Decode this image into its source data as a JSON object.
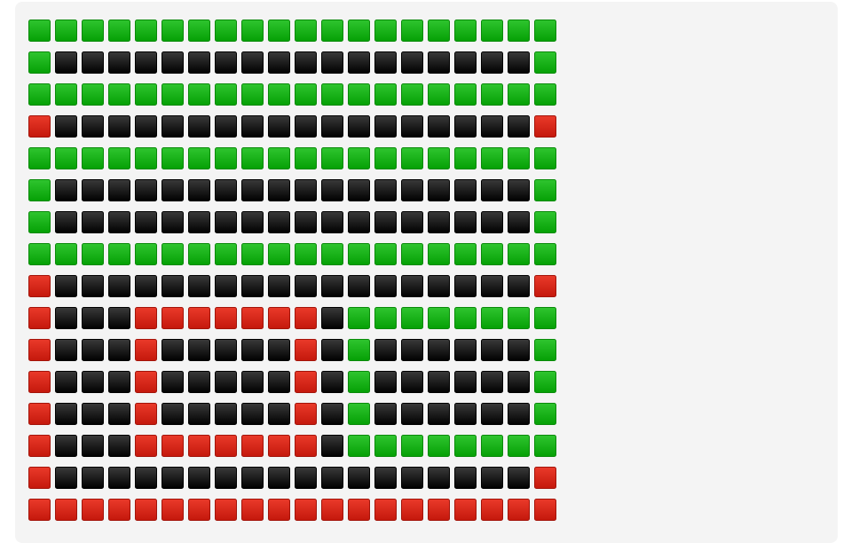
{
  "grid": {
    "rows": [
      [
        "green",
        "green",
        "green",
        "green",
        "green",
        "green",
        "green",
        "green",
        "green",
        "green",
        "green",
        "green",
        "green",
        "green",
        "green",
        "green",
        "green",
        "green",
        "green",
        "green"
      ],
      [
        "green",
        "black",
        "black",
        "black",
        "black",
        "black",
        "black",
        "black",
        "black",
        "black",
        "black",
        "black",
        "black",
        "black",
        "black",
        "black",
        "black",
        "black",
        "black",
        "green"
      ],
      [
        "green",
        "green",
        "green",
        "green",
        "green",
        "green",
        "green",
        "green",
        "green",
        "green",
        "green",
        "green",
        "green",
        "green",
        "green",
        "green",
        "green",
        "green",
        "green",
        "green"
      ],
      [
        "red",
        "black",
        "black",
        "black",
        "black",
        "black",
        "black",
        "black",
        "black",
        "black",
        "black",
        "black",
        "black",
        "black",
        "black",
        "black",
        "black",
        "black",
        "black",
        "red"
      ],
      [
        "green",
        "green",
        "green",
        "green",
        "green",
        "green",
        "green",
        "green",
        "green",
        "green",
        "green",
        "green",
        "green",
        "green",
        "green",
        "green",
        "green",
        "green",
        "green",
        "green"
      ],
      [
        "green",
        "black",
        "black",
        "black",
        "black",
        "black",
        "black",
        "black",
        "black",
        "black",
        "black",
        "black",
        "black",
        "black",
        "black",
        "black",
        "black",
        "black",
        "black",
        "green"
      ],
      [
        "green",
        "black",
        "black",
        "black",
        "black",
        "black",
        "black",
        "black",
        "black",
        "black",
        "black",
        "black",
        "black",
        "black",
        "black",
        "black",
        "black",
        "black",
        "black",
        "green"
      ],
      [
        "green",
        "green",
        "green",
        "green",
        "green",
        "green",
        "green",
        "green",
        "green",
        "green",
        "green",
        "green",
        "green",
        "green",
        "green",
        "green",
        "green",
        "green",
        "green",
        "green"
      ],
      [
        "red",
        "black",
        "black",
        "black",
        "black",
        "black",
        "black",
        "black",
        "black",
        "black",
        "black",
        "black",
        "black",
        "black",
        "black",
        "black",
        "black",
        "black",
        "black",
        "red"
      ],
      [
        "red",
        "black",
        "black",
        "black",
        "red",
        "red",
        "red",
        "red",
        "red",
        "red",
        "red",
        "black",
        "green",
        "green",
        "green",
        "green",
        "green",
        "green",
        "green",
        "green"
      ],
      [
        "red",
        "black",
        "black",
        "black",
        "red",
        "black",
        "black",
        "black",
        "black",
        "black",
        "red",
        "black",
        "green",
        "black",
        "black",
        "black",
        "black",
        "black",
        "black",
        "green"
      ],
      [
        "red",
        "black",
        "black",
        "black",
        "red",
        "black",
        "black",
        "black",
        "black",
        "black",
        "red",
        "black",
        "green",
        "black",
        "black",
        "black",
        "black",
        "black",
        "black",
        "green"
      ],
      [
        "red",
        "black",
        "black",
        "black",
        "red",
        "black",
        "black",
        "black",
        "black",
        "black",
        "red",
        "black",
        "green",
        "black",
        "black",
        "black",
        "black",
        "black",
        "black",
        "green"
      ],
      [
        "red",
        "black",
        "black",
        "black",
        "red",
        "red",
        "red",
        "red",
        "red",
        "red",
        "red",
        "black",
        "green",
        "green",
        "green",
        "green",
        "green",
        "green",
        "green",
        "green"
      ],
      [
        "red",
        "black",
        "black",
        "black",
        "black",
        "black",
        "black",
        "black",
        "black",
        "black",
        "black",
        "black",
        "black",
        "black",
        "black",
        "black",
        "black",
        "black",
        "black",
        "red"
      ],
      [
        "red",
        "red",
        "red",
        "red",
        "red",
        "red",
        "red",
        "red",
        "red",
        "red",
        "red",
        "red",
        "red",
        "red",
        "red",
        "red",
        "red",
        "red",
        "red",
        "red"
      ]
    ]
  }
}
